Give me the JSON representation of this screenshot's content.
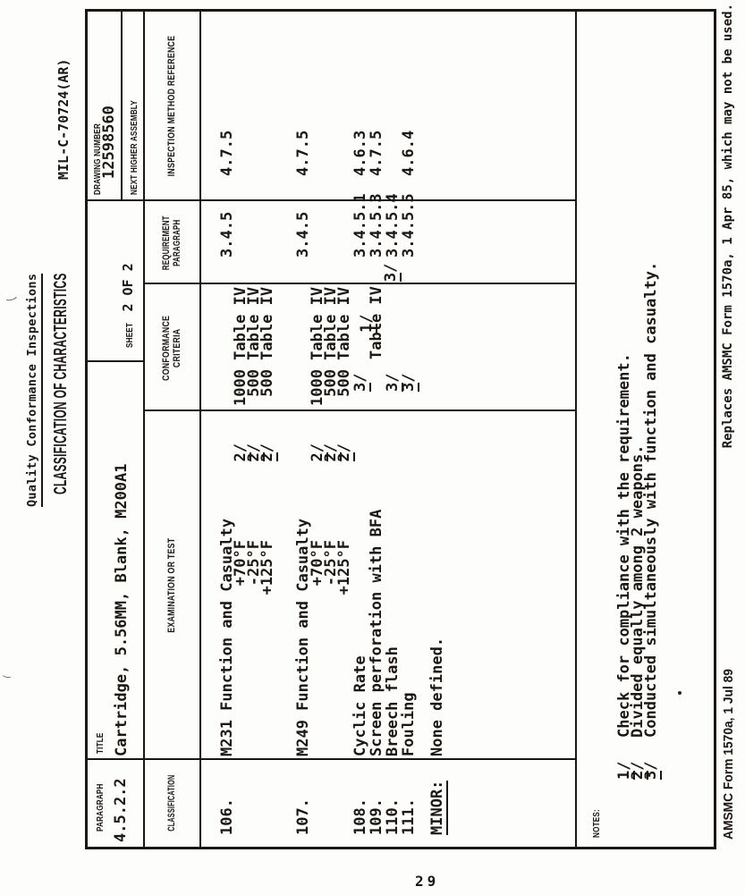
{
  "page": {
    "number": "29"
  },
  "header": {
    "doc_title": "Quality Conformance Inspections",
    "form_title": "CLASSIFICATION OF CHARACTERISTICS",
    "spec_number": "MIL-C-70724(AR)"
  },
  "info": {
    "paragraph_label": "PARAGRAPH",
    "paragraph_value": "4.5.2.2",
    "title_label": "TITLE",
    "title_value": "Cartridge, 5.56MM, Blank, M200A1",
    "sheet_label": "SHEET",
    "sheet_value": "2 OF 2",
    "drawing_label": "DRAWING NUMBER",
    "drawing_value": "12598560",
    "next_higher_label": "NEXT HIGHER ASSEMBLY"
  },
  "table": {
    "headers": {
      "classification": "CLASSIFICATION",
      "examination": "EXAMINATION OR TEST",
      "conformance_1": "CONFORMANCE",
      "conformance_2": "CRITERIA",
      "requirement_1": "REQUIREMENT",
      "requirement_2": "PARAGRAPH",
      "inspection": "INSPECTION METHOD REFERENCE"
    },
    "groups": [
      {
        "cls": "106.",
        "title": "M231 Function and Casualty",
        "req": "3.4.5",
        "insp": "4.7.5",
        "lines": [
          {
            "temp": "+70°F",
            "mark": "2/",
            "conf": "1000 Table IV"
          },
          {
            "temp": "-25°F",
            "mark": "2/",
            "conf": " 500 Table IV"
          },
          {
            "temp": "+125°F",
            "mark": "2/",
            "conf": " 500 Table IV"
          }
        ]
      },
      {
        "cls": "107.",
        "title": "M249 Function and Casualty",
        "req": "3.4.5",
        "insp": "4.7.5",
        "lines": [
          {
            "temp": "+70°F",
            "mark": "2/",
            "conf": "1000 Table IV"
          },
          {
            "temp": "-25°F",
            "mark": "2/",
            "conf": " 500 Table IV"
          },
          {
            "temp": "+125°F",
            "mark": "2/",
            "conf": " 500 Table IV"
          }
        ]
      }
    ],
    "rows": [
      {
        "cls": "108.",
        "exam": "Cyclic Rate",
        "mark": "3/",
        "note": "",
        "conf": "",
        "req": "3.4.5.1",
        "insp": "4.6.3"
      },
      {
        "cls": "109.",
        "exam": "Screen perforation with BFA",
        "mark": "3/",
        "note": "1/",
        "conf": "Table IV",
        "req": "3.4.5.3",
        "insp": "4.7.5"
      },
      {
        "cls": "110.",
        "exam": "Breech flash",
        "mark": "3/",
        "note": "",
        "conf": "",
        "req": "3.4.5.4",
        "insp": ""
      },
      {
        "cls": "111.",
        "exam": "Fouling",
        "mark": "3/",
        "note": "",
        "conf": "",
        "req": "3.4.5.5",
        "insp": "4.6.4"
      }
    ],
    "minor": {
      "label": "MINOR:",
      "value": "None defined."
    }
  },
  "notes": {
    "label": "NOTES:",
    "items": [
      {
        "mark": "1/",
        "text": "Check for compliance with the requirement."
      },
      {
        "mark": "2/",
        "text": "Divided equally among 2 weapons."
      },
      {
        "mark": "3/",
        "text": "Conducted simultaneously with function and casualty."
      }
    ]
  },
  "footer": {
    "form_number": "AMSMC Form 1570a, 1 Jul 89",
    "replaces": "Replaces AMSMC Form 1570a, 1 Apr 85, which may not be used."
  }
}
